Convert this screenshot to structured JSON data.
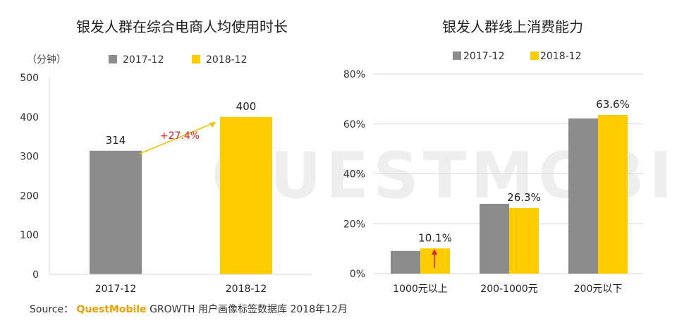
{
  "colors": {
    "series_2017": "#8c8c8c",
    "series_2018": "#ffcc00",
    "growth": "#e02020",
    "grid": "#d9d9d9",
    "watermark": "#eeeeee"
  },
  "watermark": {
    "text": "QUESTMOBILE"
  },
  "chart_data": [
    {
      "type": "bar",
      "title": "银发人群在综合电商人均使用时长",
      "unit_label": "（分钟）",
      "categories": [
        "2017-12",
        "2018-12"
      ],
      "series": [
        {
          "name": "2017-12",
          "values": [
            314,
            null
          ]
        },
        {
          "name": "2018-12",
          "values": [
            null,
            400
          ]
        }
      ],
      "data_labels": [
        "314",
        "400"
      ],
      "yticks": [
        "0",
        "100",
        "200",
        "300",
        "400",
        "500"
      ],
      "ylim": [
        0,
        500
      ],
      "annotation": "+27.4%",
      "legend": [
        "2017-12",
        "2018-12"
      ],
      "legend_position": "top"
    },
    {
      "type": "bar",
      "title": "银发人群线上消费能力",
      "categories": [
        "1000元以上",
        "200-1000元",
        "200元以下"
      ],
      "series": [
        {
          "name": "2017-12",
          "values": [
            9.1,
            28.0,
            62.2
          ]
        },
        {
          "name": "2018-12",
          "values": [
            10.1,
            26.3,
            63.6
          ]
        }
      ],
      "data_labels": [
        "10.1%",
        "26.3%",
        "63.6%"
      ],
      "yticks": [
        "0%",
        "20%",
        "40%",
        "60%",
        "80%"
      ],
      "ylim": [
        0,
        80
      ],
      "legend": [
        "2017-12",
        "2018-12"
      ],
      "legend_position": "top"
    }
  ],
  "source": {
    "prefix": "Source：",
    "brand": "QuestMobile",
    "rest": "GROWTH 用户画像标签数据库 2018年12月"
  }
}
